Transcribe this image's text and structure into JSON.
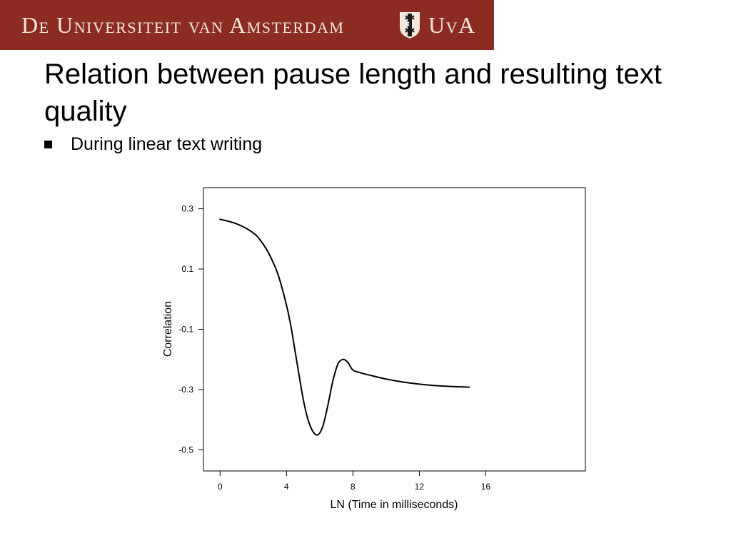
{
  "header": {
    "university_name": "De Universiteit van Amsterdam",
    "short_name": "UvA",
    "logo_icon": "uva-crest-icon",
    "banner_color": "#8c2b22",
    "banner_text_color": "#f4e9dc"
  },
  "slide": {
    "title": "Relation between pause length and resulting text quality",
    "bullet": "During linear text writing"
  },
  "chart_data": {
    "type": "line",
    "title": "",
    "xlabel": "LN (Time in milliseconds)",
    "ylabel": "Correlation",
    "xlim": [
      -1,
      22
    ],
    "ylim": [
      -0.57,
      0.37
    ],
    "x_ticks": [
      0,
      4,
      8,
      12,
      16
    ],
    "x_tick_labels": [
      "0",
      "4",
      "8",
      "12",
      "16"
    ],
    "y_ticks": [
      -0.5,
      -0.3,
      -0.1,
      0.1,
      0.3
    ],
    "y_tick_labels": [
      "-0.5",
      "-0.3",
      "-0.1",
      "0.1",
      "0.3"
    ],
    "grid": false,
    "line_color": "#000000",
    "series": [
      {
        "x": [
          0,
          1,
          2,
          2.5,
          3,
          3.5,
          4,
          4.3,
          4.6,
          5,
          5.3,
          5.6,
          5.9,
          6.2,
          6.5,
          6.8,
          7.1,
          7.4,
          7.7,
          8,
          8.5,
          9,
          10,
          11,
          12,
          13,
          14,
          15
        ],
        "y": [
          0.265,
          0.25,
          0.22,
          0.19,
          0.145,
          0.08,
          -0.02,
          -0.1,
          -0.2,
          -0.33,
          -0.4,
          -0.44,
          -0.45,
          -0.42,
          -0.35,
          -0.27,
          -0.215,
          -0.2,
          -0.21,
          -0.235,
          -0.245,
          -0.252,
          -0.265,
          -0.275,
          -0.282,
          -0.287,
          -0.29,
          -0.292
        ]
      }
    ]
  }
}
